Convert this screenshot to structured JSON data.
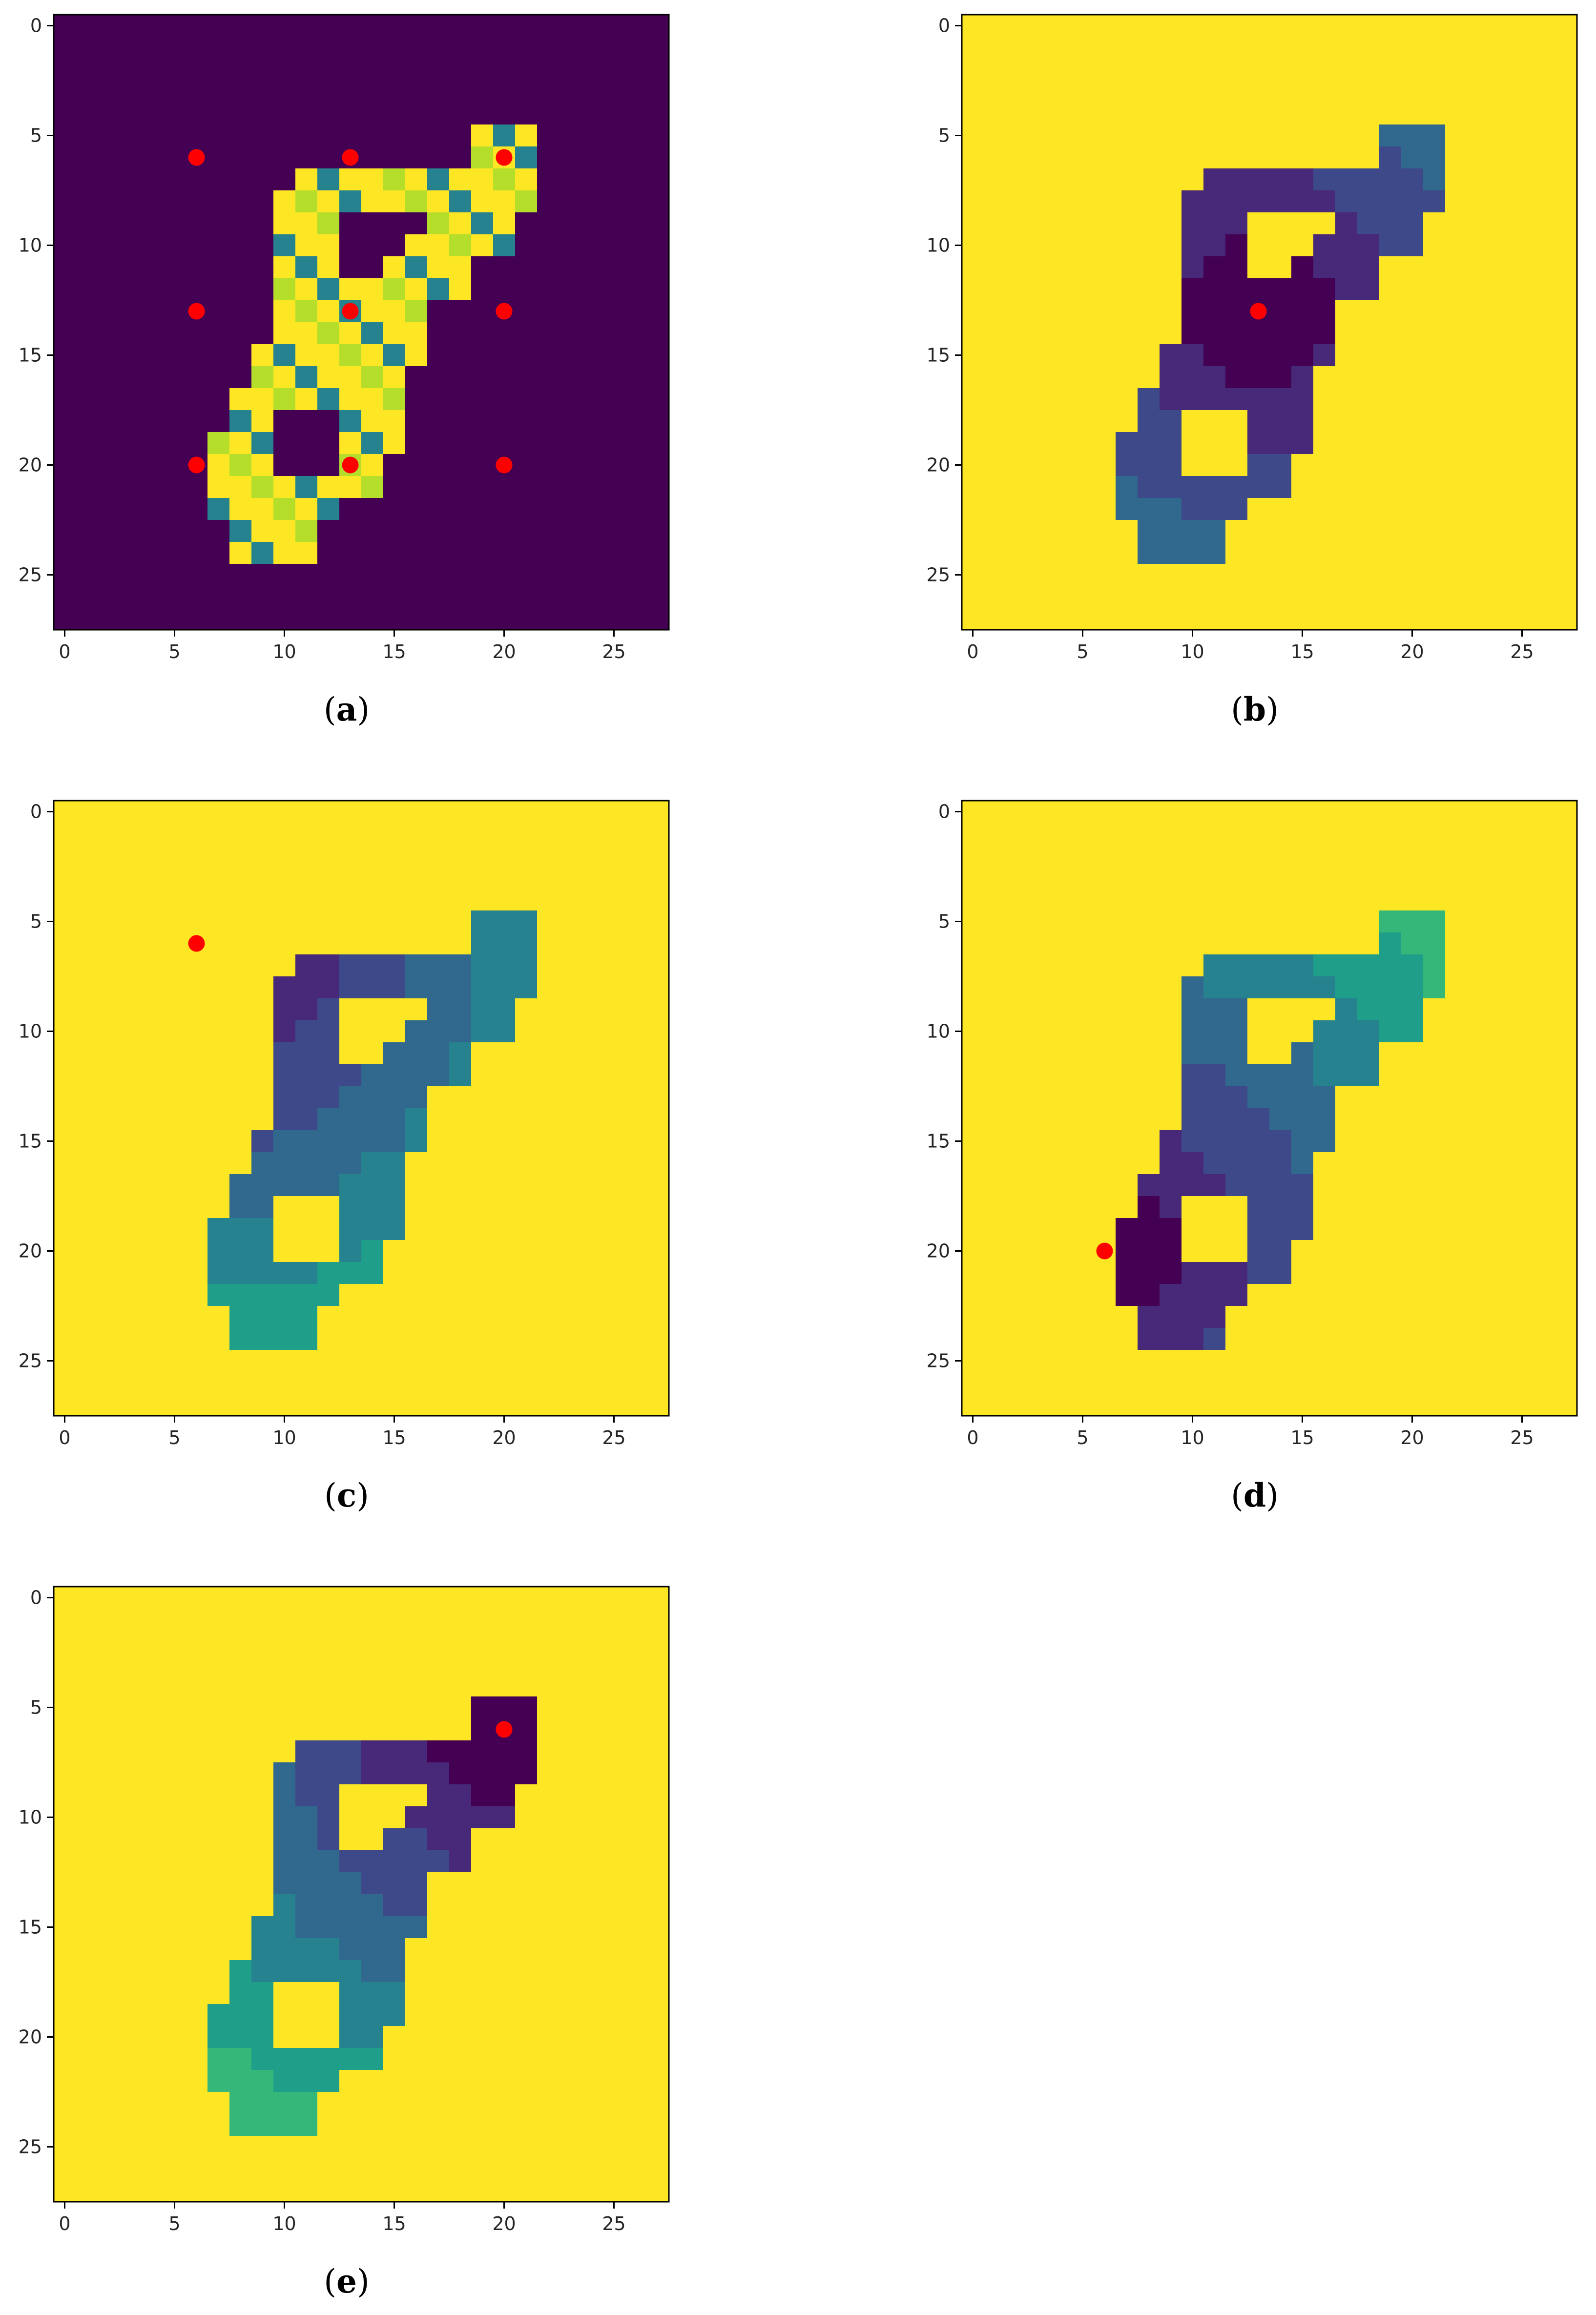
{
  "colors": {
    "background": "#440154",
    "digit_fill": "#fde725",
    "marker": "#ff0000",
    "viridis": [
      "#440154",
      "#482878",
      "#3e4989",
      "#31688e",
      "#26828e",
      "#1f9e89",
      "#35b779",
      "#6ece58",
      "#b5de2b",
      "#fde725"
    ]
  },
  "chart_data": [
    {
      "type": "heatmap",
      "panel": "a",
      "caption": "a",
      "grid_size": 28,
      "xlim": [
        -0.5,
        27.5
      ],
      "ylim": [
        27.5,
        -0.5
      ],
      "x_ticks": [
        0,
        5,
        10,
        15,
        20,
        25
      ],
      "y_ticks": [
        0,
        5,
        10,
        15,
        20,
        25
      ],
      "colormap": "viridis",
      "content": "pixel intensity image of a handwritten digit",
      "points": [
        {
          "x": 6,
          "y": 6
        },
        {
          "x": 13,
          "y": 6
        },
        {
          "x": 20,
          "y": 6
        },
        {
          "x": 6,
          "y": 13
        },
        {
          "x": 13,
          "y": 13
        },
        {
          "x": 20,
          "y": 13
        },
        {
          "x": 6,
          "y": 20
        },
        {
          "x": 13,
          "y": 20
        },
        {
          "x": 20,
          "y": 20
        }
      ]
    },
    {
      "type": "heatmap",
      "panel": "b",
      "caption": "b",
      "grid_size": 28,
      "xlim": [
        -0.5,
        27.5
      ],
      "ylim": [
        27.5,
        -0.5
      ],
      "x_ticks": [
        0,
        5,
        10,
        15,
        20,
        25
      ],
      "y_ticks": [
        0,
        5,
        10,
        15,
        20,
        25
      ],
      "colormap": "viridis",
      "content": "geodesic distance map from marked point",
      "points": [
        {
          "x": 13,
          "y": 13
        }
      ]
    },
    {
      "type": "heatmap",
      "panel": "c",
      "caption": "c",
      "grid_size": 28,
      "xlim": [
        -0.5,
        27.5
      ],
      "ylim": [
        27.5,
        -0.5
      ],
      "x_ticks": [
        0,
        5,
        10,
        15,
        20,
        25
      ],
      "y_ticks": [
        0,
        5,
        10,
        15,
        20,
        25
      ],
      "colormap": "viridis",
      "content": "geodesic distance map from marked point",
      "points": [
        {
          "x": 6,
          "y": 6
        }
      ]
    },
    {
      "type": "heatmap",
      "panel": "d",
      "caption": "d",
      "grid_size": 28,
      "xlim": [
        -0.5,
        27.5
      ],
      "ylim": [
        27.5,
        -0.5
      ],
      "x_ticks": [
        0,
        5,
        10,
        15,
        20,
        25
      ],
      "y_ticks": [
        0,
        5,
        10,
        15,
        20,
        25
      ],
      "colormap": "viridis",
      "content": "geodesic distance map from marked point",
      "points": [
        {
          "x": 6,
          "y": 20
        }
      ]
    },
    {
      "type": "heatmap",
      "panel": "e",
      "caption": "e",
      "grid_size": 28,
      "xlim": [
        -0.5,
        27.5
      ],
      "ylim": [
        27.5,
        -0.5
      ],
      "x_ticks": [
        0,
        5,
        10,
        15,
        20,
        25
      ],
      "y_ticks": [
        0,
        5,
        10,
        15,
        20,
        25
      ],
      "colormap": "viridis",
      "content": "geodesic distance map from marked point",
      "points": [
        {
          "x": 20,
          "y": 6
        }
      ]
    }
  ]
}
